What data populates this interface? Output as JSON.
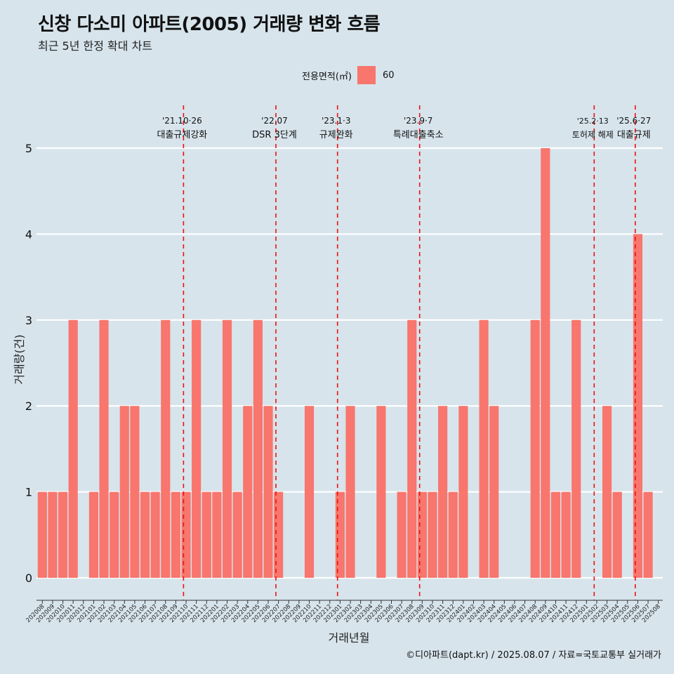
{
  "header": {
    "title": "신창 다소미 아파트(2005) 거래량 변화 흐름",
    "subtitle": "최근 5년 한정 확대 차트"
  },
  "legend": {
    "title": "전용면적(㎡)",
    "item": "60",
    "color": "#f8766d"
  },
  "footer": {
    "source": "©디아파트(dapt.kr) / 2025.08.07 / 자료=국토교통부 실거래가"
  },
  "chart_data": {
    "type": "bar",
    "title": "신창 다소미 아파트(2005) 거래량 변화 흐름",
    "subtitle": "최근 5년 한정 확대 차트",
    "xlabel": "거래년월",
    "ylabel": "거래량(건)",
    "ylim": [
      0,
      5
    ],
    "yticks": [
      0,
      1,
      2,
      3,
      4,
      5
    ],
    "grid": true,
    "legend_position": "top",
    "bar_color": "#f8766d",
    "categories": [
      "202008",
      "202009",
      "202010",
      "202011",
      "202012",
      "202101",
      "202102",
      "202103",
      "202104",
      "202105",
      "202106",
      "202107",
      "202108",
      "202109",
      "202110",
      "202111",
      "202112",
      "202201",
      "202202",
      "202203",
      "202204",
      "202205",
      "202206",
      "202207",
      "202208",
      "202209",
      "202210",
      "202211",
      "202212",
      "202301",
      "202302",
      "202303",
      "202304",
      "202305",
      "202306",
      "202307",
      "202308",
      "202309",
      "202310",
      "202311",
      "202312",
      "202401",
      "202402",
      "202403",
      "202404",
      "202405",
      "202406",
      "202407",
      "202408",
      "202409",
      "202410",
      "202411",
      "202412",
      "202501",
      "202502",
      "202503",
      "202504",
      "202505",
      "202506",
      "202507",
      "202508"
    ],
    "series": [
      {
        "name": "60",
        "values": [
          1,
          1,
          1,
          3,
          0,
          1,
          3,
          1,
          2,
          2,
          1,
          1,
          3,
          1,
          1,
          3,
          1,
          1,
          3,
          1,
          2,
          3,
          2,
          1,
          0,
          0,
          2,
          0,
          0,
          1,
          2,
          0,
          0,
          2,
          0,
          1,
          3,
          1,
          1,
          2,
          1,
          2,
          0,
          3,
          2,
          0,
          0,
          0,
          3,
          5,
          1,
          1,
          3,
          0,
          0,
          2,
          1,
          0,
          4,
          1,
          0
        ]
      }
    ],
    "events": [
      {
        "month": "202110",
        "date": "'21.10·26",
        "label": "대출규제강화"
      },
      {
        "month": "202207",
        "date": "'22.07",
        "label": "DSR 3단계"
      },
      {
        "month": "202301",
        "date": "'23.1·3",
        "label": "규제완화"
      },
      {
        "month": "202309",
        "date": "'23.9·7",
        "label": "특례대출축소"
      },
      {
        "month": "202502",
        "date": "'25.2·13",
        "label": "토허제 해제"
      },
      {
        "month": "202506",
        "date": "'25.6·27",
        "label": "대출규제"
      }
    ]
  }
}
